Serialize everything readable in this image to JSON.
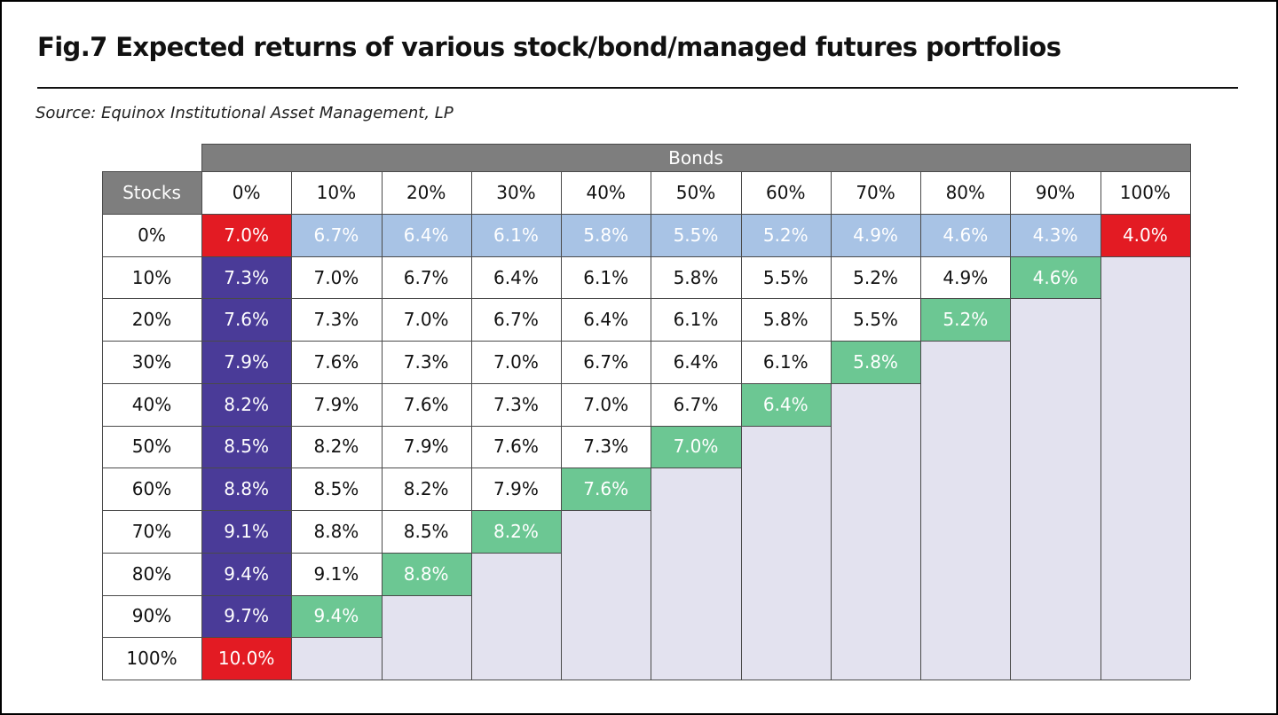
{
  "figure": {
    "title": "Fig.7  Expected returns of various stock/bond/managed futures portfolios",
    "source": "Source: Equinox Institutional Asset Management, LP"
  },
  "colors": {
    "header": "#7e7e7e",
    "red": "#e31b23",
    "blue": "#a8c3e5",
    "purple": "#4a3b98",
    "green": "#6cc793",
    "empty": "#e3e2ef"
  },
  "chart_data": {
    "type": "table",
    "column_group_label": "Bonds",
    "row_header_label": "Stocks",
    "columns": [
      "0%",
      "10%",
      "20%",
      "30%",
      "40%",
      "50%",
      "60%",
      "70%",
      "80%",
      "90%",
      "100%"
    ],
    "rows": [
      {
        "label": "0%",
        "values": [
          "7.0%",
          "6.7%",
          "6.4%",
          "6.1%",
          "5.8%",
          "5.5%",
          "5.2%",
          "4.9%",
          "4.6%",
          "4.3%",
          "4.0%"
        ]
      },
      {
        "label": "10%",
        "values": [
          "7.3%",
          "7.0%",
          "6.7%",
          "6.4%",
          "6.1%",
          "5.8%",
          "5.5%",
          "5.2%",
          "4.9%",
          "4.6%"
        ]
      },
      {
        "label": "20%",
        "values": [
          "7.6%",
          "7.3%",
          "7.0%",
          "6.7%",
          "6.4%",
          "6.1%",
          "5.8%",
          "5.5%",
          "5.2%"
        ]
      },
      {
        "label": "30%",
        "values": [
          "7.9%",
          "7.6%",
          "7.3%",
          "7.0%",
          "6.7%",
          "6.4%",
          "6.1%",
          "5.8%"
        ]
      },
      {
        "label": "40%",
        "values": [
          "8.2%",
          "7.9%",
          "7.6%",
          "7.3%",
          "7.0%",
          "6.7%",
          "6.4%"
        ]
      },
      {
        "label": "50%",
        "values": [
          "8.5%",
          "8.2%",
          "7.9%",
          "7.6%",
          "7.3%",
          "7.0%"
        ]
      },
      {
        "label": "60%",
        "values": [
          "8.8%",
          "8.5%",
          "8.2%",
          "7.9%",
          "7.6%"
        ]
      },
      {
        "label": "70%",
        "values": [
          "9.1%",
          "8.8%",
          "8.5%",
          "8.2%"
        ]
      },
      {
        "label": "80%",
        "values": [
          "9.4%",
          "9.1%",
          "8.8%"
        ]
      },
      {
        "label": "90%",
        "values": [
          "9.7%",
          "9.4%"
        ]
      },
      {
        "label": "100%",
        "values": [
          "10.0%"
        ]
      }
    ],
    "highlights": {
      "corners": "red",
      "first_row": "blue",
      "first_column": "purple",
      "diagonal": "green",
      "blank_area": "empty"
    }
  }
}
